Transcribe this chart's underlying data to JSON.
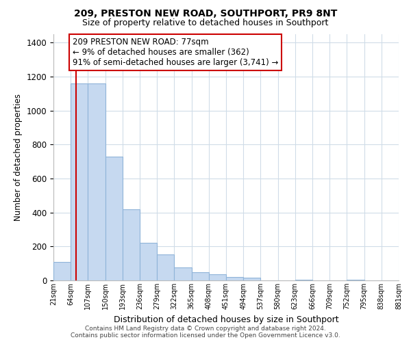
{
  "title": "209, PRESTON NEW ROAD, SOUTHPORT, PR9 8NT",
  "subtitle": "Size of property relative to detached houses in Southport",
  "xlabel": "Distribution of detached houses by size in Southport",
  "ylabel": "Number of detached properties",
  "bar_edges": [
    21,
    64,
    107,
    150,
    193,
    236,
    279,
    322,
    365,
    408,
    451,
    494,
    537,
    580,
    623,
    666,
    709,
    752,
    795,
    838,
    881
  ],
  "bar_heights": [
    107,
    1160,
    1160,
    730,
    420,
    220,
    155,
    75,
    50,
    38,
    20,
    15,
    0,
    0,
    5,
    0,
    0,
    3,
    0,
    0
  ],
  "tick_labels": [
    "21sqm",
    "64sqm",
    "107sqm",
    "150sqm",
    "193sqm",
    "236sqm",
    "279sqm",
    "322sqm",
    "365sqm",
    "408sqm",
    "451sqm",
    "494sqm",
    "537sqm",
    "580sqm",
    "623sqm",
    "666sqm",
    "709sqm",
    "752sqm",
    "795sqm",
    "838sqm",
    "881sqm"
  ],
  "bar_color": "#c6d9f0",
  "bar_edge_color": "#8fb4d9",
  "property_line_x": 77,
  "property_line_color": "#cc0000",
  "annotation_line1": "209 PRESTON NEW ROAD: 77sqm",
  "annotation_line2": "← 9% of detached houses are smaller (362)",
  "annotation_line3": "91% of semi-detached houses are larger (3,741) →",
  "annotation_box_color": "#ffffff",
  "annotation_box_edge": "#cc0000",
  "ylim": [
    0,
    1450
  ],
  "yticks": [
    0,
    200,
    400,
    600,
    800,
    1000,
    1200,
    1400
  ],
  "footer_line1": "Contains HM Land Registry data © Crown copyright and database right 2024.",
  "footer_line2": "Contains public sector information licensed under the Open Government Licence v3.0.",
  "background_color": "#ffffff",
  "grid_color": "#d0dce8"
}
